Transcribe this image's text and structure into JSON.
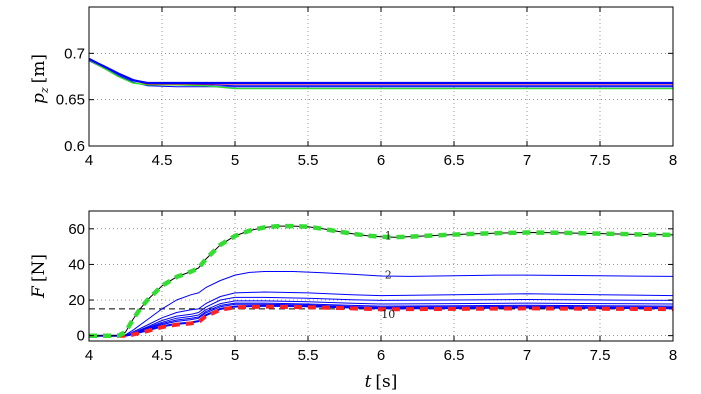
{
  "chart_data": [
    {
      "type": "line",
      "ylabel_symbol": "p",
      "ylabel_subscript": "z",
      "ylabel_unit": "[m]",
      "xlim": [
        4,
        8
      ],
      "ylim": [
        0.6,
        0.75
      ],
      "xticks": [
        4,
        4.5,
        5,
        5.5,
        6,
        6.5,
        7,
        7.5,
        8
      ],
      "xtick_labels": [
        "4",
        "4.5",
        "5",
        "5.5",
        "6",
        "6.5",
        "7",
        "7.5",
        "8"
      ],
      "yticks": [
        0.6,
        0.65,
        0.7
      ],
      "ytick_labels": [
        "0.6",
        "0.65",
        "0.7"
      ],
      "grid": true,
      "colors": {
        "blue": "#0000ff",
        "green": "#33dd33",
        "red": "#ff2222",
        "black": "#000000"
      },
      "series": [
        {
          "color": "blue",
          "style": "solid",
          "width": 1,
          "x": [
            4,
            4.1,
            4.2,
            4.3,
            4.4,
            4.6,
            4.8,
            5.0,
            8.0
          ],
          "y": [
            0.694,
            0.687,
            0.679,
            0.672,
            0.667,
            0.666,
            0.666,
            0.665,
            0.665
          ]
        },
        {
          "color": "blue",
          "style": "solid",
          "width": 1,
          "x": [
            4,
            4.1,
            4.2,
            4.3,
            4.4,
            4.6,
            4.8,
            5.0,
            8.0
          ],
          "y": [
            0.692,
            0.684,
            0.676,
            0.669,
            0.665,
            0.664,
            0.664,
            0.664,
            0.664
          ]
        },
        {
          "color": "green",
          "style": "solid",
          "width": 1.4,
          "x": [
            4,
            4.1,
            4.2,
            4.3,
            4.4,
            4.6,
            4.8,
            5.0,
            8.0
          ],
          "y": [
            0.693,
            0.684,
            0.675,
            0.668,
            0.666,
            0.666,
            0.665,
            0.662,
            0.662
          ]
        },
        {
          "color": "black",
          "style": "dashed",
          "width": 1,
          "x": [
            4,
            4.1,
            4.2,
            4.3,
            4.4,
            4.6,
            4.8,
            5.0,
            8.0
          ],
          "y": [
            0.694,
            0.686,
            0.678,
            0.671,
            0.668,
            0.668,
            0.667,
            0.667,
            0.667
          ]
        },
        {
          "color": "red",
          "style": "solid",
          "width": 1.4,
          "x": [
            4,
            4.1,
            4.2,
            4.3,
            4.4,
            4.6,
            4.8,
            5.0,
            8.0
          ],
          "y": [
            0.694,
            0.686,
            0.678,
            0.671,
            0.667,
            0.667,
            0.667,
            0.667,
            0.667
          ]
        },
        {
          "color": "blue",
          "style": "solid",
          "width": 2.2,
          "x": [
            4,
            4.1,
            4.2,
            4.3,
            4.4,
            4.6,
            4.8,
            5.0,
            8.0
          ],
          "y": [
            0.694,
            0.686,
            0.678,
            0.671,
            0.668,
            0.668,
            0.668,
            0.668,
            0.668
          ]
        }
      ]
    },
    {
      "type": "line",
      "xlabel_symbol": "t",
      "xlabel_unit": "[s]",
      "ylabel_symbol": "F",
      "ylabel_unit": "[N]",
      "xlim": [
        4,
        8
      ],
      "ylim": [
        -3,
        70
      ],
      "xticks": [
        4,
        4.5,
        5,
        5.5,
        6,
        6.5,
        7,
        7.5,
        8
      ],
      "xtick_labels": [
        "4",
        "4.5",
        "5",
        "5.5",
        "6",
        "6.5",
        "7",
        "7.5",
        "8"
      ],
      "yticks": [
        0,
        20,
        40,
        60
      ],
      "ytick_labels": [
        "0",
        "20",
        "40",
        "60"
      ],
      "grid": true,
      "annotations": [
        {
          "text": "1",
          "x": 6.05,
          "y": 54
        },
        {
          "text": "2",
          "x": 6.05,
          "y": 32
        },
        {
          "text": "10",
          "x": 6.05,
          "y": 10
        }
      ],
      "series": [
        {
          "color": "black",
          "style": "dashed",
          "width": 1,
          "x": [
            4.0,
            8.0
          ],
          "y": [
            15,
            15
          ]
        },
        {
          "color": "blue",
          "style": "solid",
          "width": 1,
          "x": [
            4.0,
            4.2,
            4.25,
            4.3,
            4.4,
            4.5,
            4.6,
            4.7,
            4.75,
            4.8,
            4.9,
            5.0,
            5.1,
            5.2,
            5.4,
            5.6,
            5.8,
            6.0,
            6.2,
            6.5,
            6.8,
            7.0,
            7.5,
            8.0
          ],
          "y": [
            0,
            0,
            0.5,
            3,
            9,
            15,
            20,
            23,
            24,
            27,
            31,
            34,
            35.5,
            36,
            36,
            35.3,
            34.5,
            33.5,
            33.3,
            33.6,
            34,
            34,
            33.6,
            33.3
          ]
        },
        {
          "color": "blue",
          "style": "solid",
          "width": 1,
          "x": [
            4.0,
            4.25,
            4.3,
            4.4,
            4.5,
            4.6,
            4.7,
            4.75,
            4.8,
            4.9,
            5.0,
            5.2,
            5.5,
            5.8,
            6.0,
            6.5,
            7.0,
            7.5,
            8.0
          ],
          "y": [
            0,
            0,
            2,
            6,
            10,
            13,
            14.5,
            15,
            18,
            22,
            24,
            24.5,
            24,
            23,
            22.5,
            23,
            23.5,
            23,
            22.5
          ]
        },
        {
          "color": "blue",
          "style": "solid",
          "width": 1,
          "x": [
            4.0,
            4.25,
            4.3,
            4.4,
            4.5,
            4.6,
            4.7,
            4.75,
            4.8,
            4.9,
            5.0,
            5.2,
            5.5,
            5.8,
            6.0,
            6.5,
            7.0,
            7.5,
            8.0
          ],
          "y": [
            0,
            0,
            1.5,
            5,
            8.5,
            11,
            12,
            13,
            16,
            20,
            21.5,
            21.5,
            21,
            20.2,
            19.8,
            20,
            20.3,
            20,
            19.8
          ]
        },
        {
          "color": "blue",
          "style": "solid",
          "width": 1,
          "x": [
            4.0,
            4.25,
            4.3,
            4.4,
            4.5,
            4.6,
            4.7,
            4.75,
            4.8,
            4.9,
            5.0,
            5.2,
            5.5,
            5.8,
            6.0,
            6.5,
            7.0,
            7.5,
            8.0
          ],
          "y": [
            0,
            0,
            1.2,
            4.5,
            7.5,
            9.8,
            10.8,
            11.6,
            14.5,
            18,
            19.5,
            19.5,
            19,
            18.2,
            17.8,
            18,
            18.3,
            18,
            17.8
          ]
        },
        {
          "color": "blue",
          "style": "solid",
          "width": 1,
          "x": [
            4.0,
            4.25,
            4.3,
            4.4,
            4.5,
            4.6,
            4.7,
            4.75,
            4.8,
            4.9,
            5.0,
            5.2,
            5.5,
            5.8,
            6.0,
            6.5,
            7.0,
            7.5,
            8.0
          ],
          "y": [
            0,
            0,
            1,
            4,
            6.8,
            8.8,
            9.8,
            10.5,
            13.5,
            17,
            18.3,
            18.3,
            17.8,
            17,
            16.6,
            16.8,
            17.1,
            16.8,
            16.6
          ]
        },
        {
          "color": "blue",
          "style": "solid",
          "width": 1,
          "x": [
            4.0,
            4.25,
            4.3,
            4.4,
            4.5,
            4.6,
            4.7,
            4.75,
            4.8,
            4.9,
            5.0,
            5.2,
            5.5,
            5.8,
            6.0,
            6.5,
            7.0,
            7.5,
            8.0
          ],
          "y": [
            0,
            0,
            1,
            3.6,
            6.2,
            8,
            9,
            9.8,
            12.8,
            16.2,
            17.6,
            17.6,
            17.2,
            16.4,
            16,
            16.2,
            16.5,
            16.2,
            16
          ]
        },
        {
          "color": "blue",
          "style": "solid",
          "width": 2,
          "x": [
            4.0,
            4.25,
            4.3,
            4.4,
            4.5,
            4.6,
            4.7,
            4.75,
            4.8,
            4.9,
            5.0,
            5.2,
            5.5,
            5.8,
            6.0,
            6.5,
            7.0,
            7.5,
            8.0
          ],
          "y": [
            0,
            0,
            0.8,
            3,
            5.2,
            6.6,
            7.4,
            8.2,
            11.5,
            15,
            16.4,
            16.8,
            16.5,
            15.8,
            15.3,
            15.5,
            15.8,
            15.6,
            15.4
          ]
        },
        {
          "color": "red",
          "style": "dashed",
          "width": 4,
          "x": [
            4.0,
            4.25,
            4.3,
            4.4,
            4.5,
            4.6,
            4.7,
            4.75,
            4.8,
            4.9,
            5.0,
            5.2,
            5.5,
            5.8,
            6.0,
            6.5,
            7.0,
            7.5,
            8.0
          ],
          "y": [
            0,
            0,
            0.6,
            2.6,
            4.8,
            6.2,
            6.9,
            7.6,
            11,
            14.5,
            15.9,
            16.3,
            16,
            15.3,
            14.8,
            15,
            15.3,
            15.1,
            14.9
          ]
        },
        {
          "color": "black",
          "style": "solid",
          "width": 1,
          "x": [
            4.0,
            4.2,
            4.25,
            4.3,
            4.35,
            4.4,
            4.5,
            4.6,
            4.7,
            4.75,
            4.8,
            4.9,
            5.0,
            5.1,
            5.2,
            5.3,
            5.4,
            5.5,
            5.6,
            5.7,
            5.8,
            5.9,
            6.0,
            6.1,
            6.2,
            6.4,
            6.6,
            6.8,
            7.0,
            7.2,
            7.5,
            7.8,
            8.0
          ],
          "y": [
            0,
            0,
            2,
            9,
            15,
            20,
            28,
            33,
            36,
            38,
            43,
            51,
            56,
            59,
            60.8,
            61.5,
            61.5,
            61.2,
            60,
            58.6,
            57.3,
            56.2,
            55.5,
            55.3,
            55.6,
            56.4,
            57.1,
            57.6,
            57.9,
            57.8,
            57.3,
            56.8,
            56.6
          ]
        },
        {
          "color": "green",
          "style": "dashed",
          "width": 4.5,
          "x": [
            4.0,
            4.2,
            4.25,
            4.3,
            4.35,
            4.4,
            4.5,
            4.6,
            4.7,
            4.75,
            4.8,
            4.9,
            5.0,
            5.1,
            5.2,
            5.3,
            5.4,
            5.5,
            5.6,
            5.7,
            5.8,
            5.9,
            6.0,
            6.1,
            6.2,
            6.4,
            6.6,
            6.8,
            7.0,
            7.2,
            7.5,
            7.8,
            8.0
          ],
          "y": [
            0,
            0,
            2,
            9,
            15,
            20,
            28,
            33,
            36,
            38,
            43,
            51,
            56,
            59,
            60.8,
            61.5,
            61.5,
            61.2,
            60,
            58.6,
            57.3,
            56.2,
            55.5,
            55.3,
            55.6,
            56.4,
            57.1,
            57.6,
            57.9,
            57.8,
            57.3,
            56.8,
            56.6
          ]
        }
      ]
    }
  ]
}
